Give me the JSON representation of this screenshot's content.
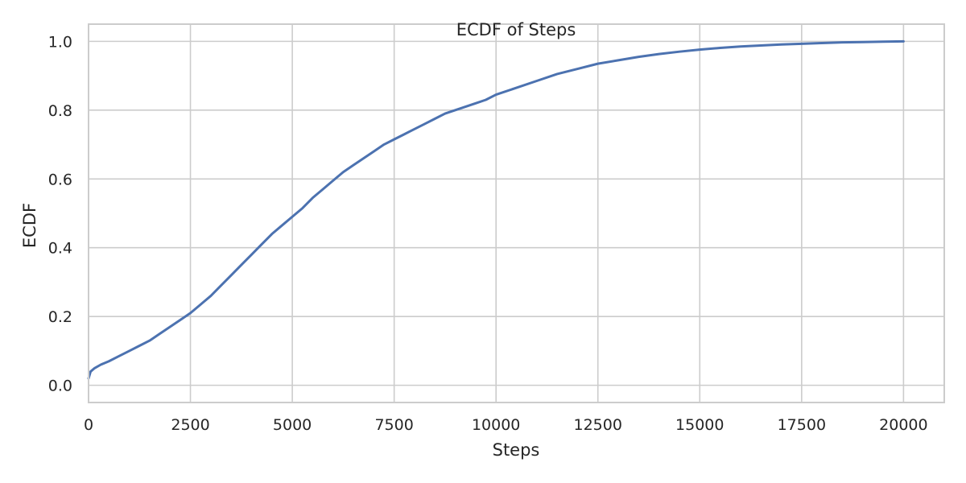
{
  "chart_data": {
    "type": "line",
    "title": "ECDF of Steps",
    "xlabel": "Steps",
    "ylabel": "ECDF",
    "xlim": [
      0,
      21000
    ],
    "ylim": [
      -0.05,
      1.05
    ],
    "x_ticks": [
      0,
      2500,
      5000,
      7500,
      10000,
      12500,
      15000,
      17500,
      20000
    ],
    "x_tick_labels": [
      "0",
      "2500",
      "5000",
      "7500",
      "10000",
      "12500",
      "15000",
      "17500",
      "20000"
    ],
    "y_ticks": [
      0.0,
      0.2,
      0.4,
      0.6,
      0.8,
      1.0
    ],
    "y_tick_labels": [
      "0.0",
      "0.2",
      "0.4",
      "0.6",
      "0.8",
      "1.0"
    ],
    "grid": true,
    "colors": {
      "line": "#4c72b0",
      "grid": "#cccccc",
      "text": "#262626"
    },
    "series": [
      {
        "x": [
          0,
          50,
          150,
          300,
          500,
          750,
          1000,
          1250,
          1500,
          1750,
          2000,
          2250,
          2500,
          2750,
          3000,
          3250,
          3500,
          3750,
          4000,
          4250,
          4500,
          4750,
          5000,
          5250,
          5500,
          5750,
          6000,
          6250,
          6500,
          6750,
          7000,
          7250,
          7500,
          7750,
          8000,
          8250,
          8500,
          8750,
          9000,
          9250,
          9500,
          9750,
          10000,
          10500,
          11000,
          11500,
          12000,
          12500,
          13000,
          13500,
          14000,
          14500,
          15000,
          15500,
          16000,
          16500,
          17000,
          17500,
          18000,
          18500,
          19000,
          19500,
          20000
        ],
        "y": [
          0.02,
          0.04,
          0.05,
          0.06,
          0.07,
          0.085,
          0.1,
          0.115,
          0.13,
          0.15,
          0.17,
          0.19,
          0.21,
          0.235,
          0.26,
          0.29,
          0.32,
          0.35,
          0.38,
          0.41,
          0.44,
          0.465,
          0.49,
          0.515,
          0.545,
          0.57,
          0.595,
          0.62,
          0.64,
          0.66,
          0.68,
          0.7,
          0.715,
          0.73,
          0.745,
          0.76,
          0.775,
          0.79,
          0.8,
          0.81,
          0.82,
          0.83,
          0.845,
          0.865,
          0.885,
          0.905,
          0.92,
          0.935,
          0.945,
          0.955,
          0.963,
          0.97,
          0.976,
          0.981,
          0.985,
          0.988,
          0.991,
          0.993,
          0.995,
          0.997,
          0.998,
          0.999,
          1.0
        ]
      }
    ]
  }
}
